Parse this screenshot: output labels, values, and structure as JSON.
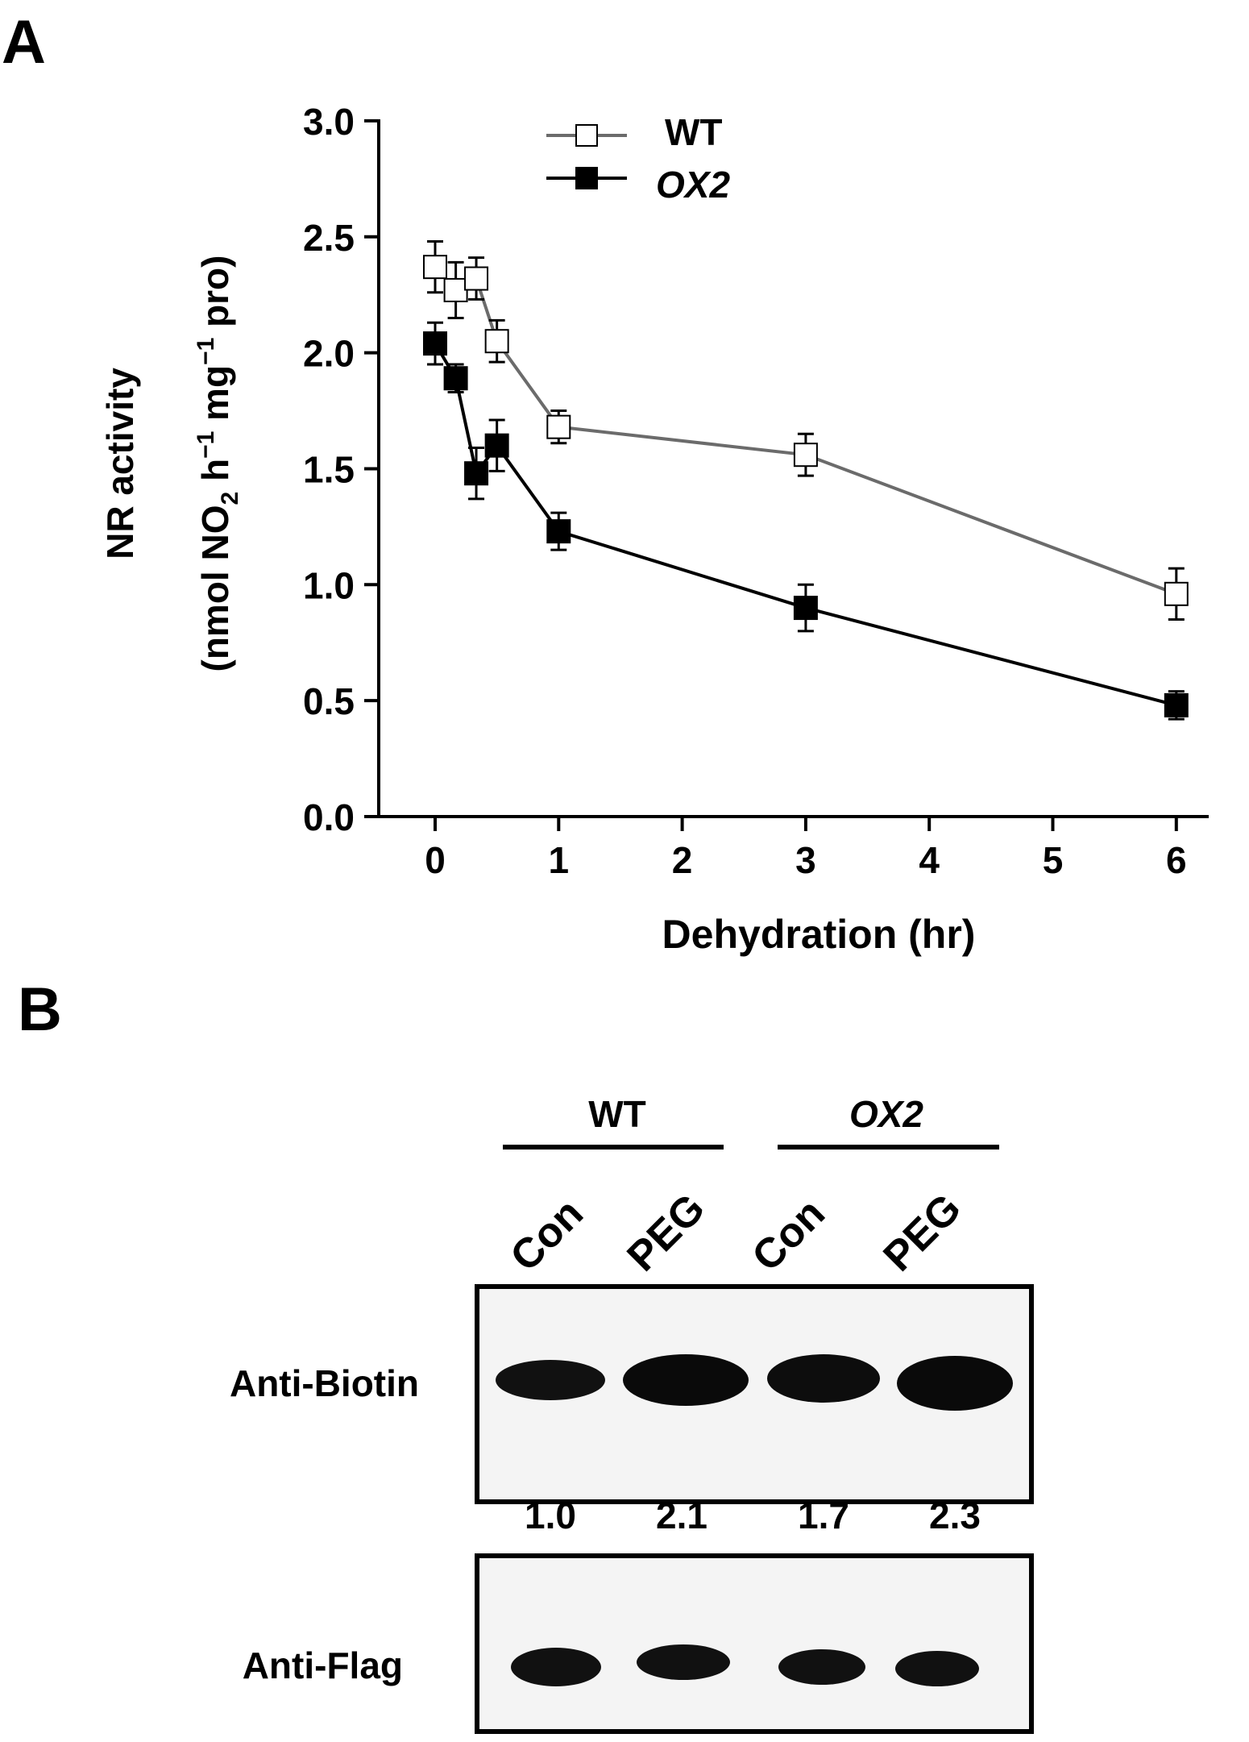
{
  "panel_a": {
    "letter": "A",
    "chart_data": {
      "type": "line",
      "xlabel": "Dehydration (hr)",
      "ylabel_line1": "NR activity",
      "ylabel_line2_parts": [
        "(nmol NO",
        "2",
        " h",
        "−1",
        " mg",
        "−1",
        " pro)"
      ],
      "xlim": [
        -0.25,
        6.25
      ],
      "ylim": [
        0,
        3.0
      ],
      "xticks": [
        "0",
        "1",
        "2",
        "3",
        "4",
        "5",
        "6"
      ],
      "xtick_values": [
        0,
        1,
        2,
        3,
        4,
        5,
        6
      ],
      "yticks": [
        "0.0",
        "0.5",
        "1.0",
        "1.5",
        "2.0",
        "2.5",
        "3.0"
      ],
      "ytick_values": [
        0,
        0.5,
        1.0,
        1.5,
        2.0,
        2.5,
        3.0
      ],
      "legend_position": "top-left",
      "series": [
        {
          "name": "WT",
          "italic": false,
          "marker": "open-square",
          "line_color": "#6b6b6b",
          "x": [
            0,
            0.167,
            0.333,
            0.5,
            1,
            3,
            6
          ],
          "y": [
            2.37,
            2.27,
            2.32,
            2.05,
            1.68,
            1.56,
            0.96
          ],
          "err": [
            0.11,
            0.12,
            0.09,
            0.09,
            0.07,
            0.09,
            0.11
          ]
        },
        {
          "name": "OX2",
          "italic": true,
          "marker": "filled-square",
          "line_color": "#000000",
          "x": [
            0,
            0.167,
            0.333,
            0.5,
            1,
            3,
            6
          ],
          "y": [
            2.04,
            1.89,
            1.48,
            1.6,
            1.23,
            0.9,
            0.48
          ],
          "err": [
            0.09,
            0.06,
            0.11,
            0.11,
            0.08,
            0.1,
            0.06
          ]
        }
      ]
    }
  },
  "panel_b": {
    "letter": "B",
    "groups": [
      {
        "label": "WT",
        "italic": false
      },
      {
        "label": "OX2",
        "italic": true
      }
    ],
    "lanes": [
      "Con",
      "PEG",
      "Con",
      "PEG"
    ],
    "blots": [
      {
        "label": "Anti-Biotin",
        "band_intensity": [
          1.0,
          2.1,
          1.7,
          2.3
        ]
      },
      {
        "label": "Anti-Flag"
      }
    ],
    "quantification": [
      "1.0",
      "2.1",
      "1.7",
      "2.3"
    ]
  }
}
